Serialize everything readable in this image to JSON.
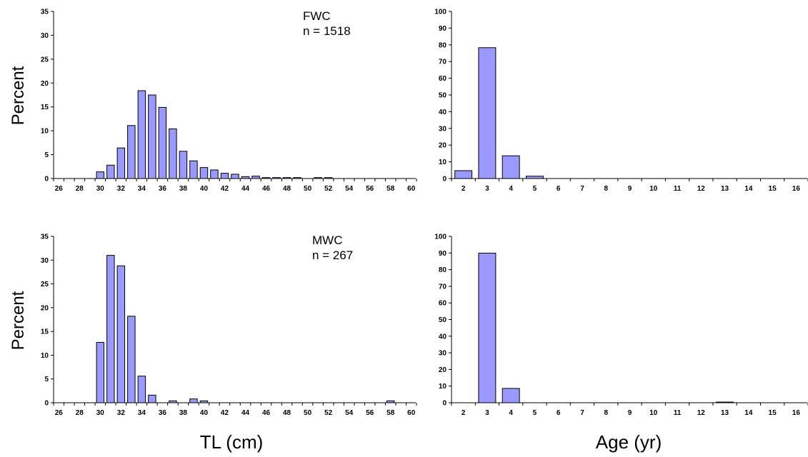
{
  "figure": {
    "ylabel_top": "Percent",
    "ylabel_bottom": "Percent",
    "xlabel_left": "TL (cm)",
    "xlabel_right": "Age (yr)",
    "bar_color": "#9999ff",
    "bar_outline": "#000000"
  },
  "chart_data": [
    {
      "type": "bar",
      "panel": "top-left",
      "annotation": [
        "FWC",
        "n = 1518"
      ],
      "xlabel": "TL (cm)",
      "ylabel": "Percent",
      "categories": [
        26,
        27,
        28,
        29,
        30,
        31,
        32,
        33,
        34,
        35,
        36,
        37,
        38,
        39,
        40,
        41,
        42,
        43,
        44,
        45,
        46,
        47,
        48,
        49,
        50,
        51,
        52,
        53,
        54,
        55,
        56,
        57,
        58,
        59,
        60
      ],
      "tick_labels": [
        26,
        28,
        30,
        32,
        34,
        36,
        38,
        40,
        42,
        44,
        46,
        48,
        50,
        52,
        54,
        56,
        58,
        60
      ],
      "values": [
        0,
        0,
        0,
        0,
        1.4,
        2.8,
        6.4,
        11.1,
        18.4,
        17.5,
        14.9,
        10.4,
        5.7,
        3.7,
        2.3,
        1.8,
        1.1,
        0.9,
        0.4,
        0.5,
        0.2,
        0.2,
        0.2,
        0.2,
        0,
        0.2,
        0.2,
        0,
        0,
        0,
        0,
        0,
        0,
        0,
        0
      ],
      "ylim": [
        0,
        35
      ],
      "yticks": [
        0,
        5,
        10,
        15,
        20,
        25,
        30,
        35
      ]
    },
    {
      "type": "bar",
      "panel": "top-right",
      "xlabel": "Age (yr)",
      "ylabel": "Percent",
      "categories": [
        2,
        3,
        4,
        5,
        6,
        7,
        8,
        9,
        10,
        11,
        12,
        13,
        14,
        15,
        16
      ],
      "tick_labels": [
        2,
        3,
        4,
        5,
        6,
        7,
        8,
        9,
        10,
        11,
        12,
        13,
        14,
        15,
        16
      ],
      "values": [
        4.7,
        78.3,
        13.6,
        1.4,
        0,
        0,
        0,
        0,
        0,
        0,
        0,
        0,
        0,
        0,
        0
      ],
      "ylim": [
        0,
        100
      ],
      "yticks": [
        0,
        10,
        20,
        30,
        40,
        50,
        60,
        70,
        80,
        90,
        100
      ]
    },
    {
      "type": "bar",
      "panel": "bottom-left",
      "annotation": [
        "MWC",
        "n = 267"
      ],
      "xlabel": "TL (cm)",
      "ylabel": "Percent",
      "categories": [
        26,
        27,
        28,
        29,
        30,
        31,
        32,
        33,
        34,
        35,
        36,
        37,
        38,
        39,
        40,
        41,
        42,
        43,
        44,
        45,
        46,
        47,
        48,
        49,
        50,
        51,
        52,
        53,
        54,
        55,
        56,
        57,
        58,
        59,
        60
      ],
      "tick_labels": [
        26,
        28,
        30,
        32,
        34,
        36,
        38,
        40,
        42,
        44,
        46,
        48,
        50,
        52,
        54,
        56,
        58,
        60
      ],
      "values": [
        0,
        0,
        0,
        0,
        12.7,
        31.0,
        28.8,
        18.2,
        5.6,
        1.6,
        0,
        0.4,
        0,
        0.8,
        0.4,
        0,
        0,
        0,
        0,
        0,
        0,
        0,
        0,
        0,
        0,
        0,
        0,
        0,
        0,
        0,
        0,
        0,
        0.4,
        0,
        0
      ],
      "ylim": [
        0,
        35
      ],
      "yticks": [
        0,
        5,
        10,
        15,
        20,
        25,
        30,
        35
      ]
    },
    {
      "type": "bar",
      "panel": "bottom-right",
      "xlabel": "Age (yr)",
      "ylabel": "Percent",
      "categories": [
        2,
        3,
        4,
        5,
        6,
        7,
        8,
        9,
        10,
        11,
        12,
        13,
        14,
        15,
        16
      ],
      "tick_labels": [
        2,
        3,
        4,
        5,
        6,
        7,
        8,
        9,
        10,
        11,
        12,
        13,
        14,
        15,
        16
      ],
      "values": [
        0,
        89.9,
        8.6,
        0,
        0,
        0,
        0,
        0,
        0,
        0,
        0,
        0.4,
        0,
        0,
        0
      ],
      "ylim": [
        0,
        100
      ],
      "yticks": [
        0,
        10,
        20,
        30,
        40,
        50,
        60,
        70,
        80,
        90,
        100
      ]
    }
  ]
}
